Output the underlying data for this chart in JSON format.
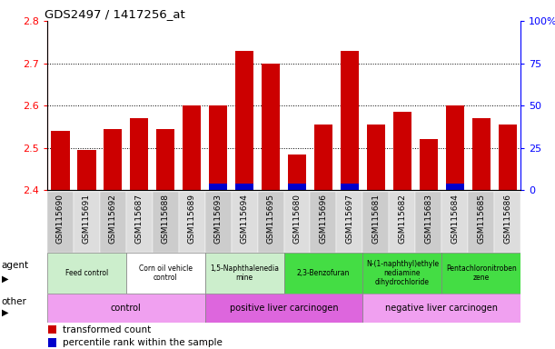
{
  "title": "GDS2497 / 1417256_at",
  "samples": [
    "GSM115690",
    "GSM115691",
    "GSM115692",
    "GSM115687",
    "GSM115688",
    "GSM115689",
    "GSM115693",
    "GSM115694",
    "GSM115695",
    "GSM115680",
    "GSM115696",
    "GSM115697",
    "GSM115681",
    "GSM115682",
    "GSM115683",
    "GSM115684",
    "GSM115685",
    "GSM115686"
  ],
  "transformed_count": [
    2.54,
    2.495,
    2.545,
    2.57,
    2.545,
    2.6,
    2.6,
    2.73,
    2.7,
    2.485,
    2.555,
    2.73,
    2.555,
    2.585,
    2.52,
    2.6,
    2.57,
    2.555
  ],
  "percentile_rank": [
    0,
    0,
    0,
    0,
    0,
    0,
    4,
    4,
    0,
    4,
    0,
    4,
    0,
    0,
    0,
    4,
    0,
    0
  ],
  "ylim_left": [
    2.4,
    2.8
  ],
  "ylim_right": [
    0,
    100
  ],
  "yticks_left": [
    2.4,
    2.5,
    2.6,
    2.7,
    2.8
  ],
  "yticks_right": [
    0,
    25,
    50,
    75,
    100
  ],
  "ytick_labels_right": [
    "0",
    "25",
    "50",
    "75",
    "100%"
  ],
  "dotted_lines": [
    2.5,
    2.6,
    2.7
  ],
  "agent_groups": [
    {
      "label": "Feed control",
      "start": 0,
      "end": 3,
      "color": "#cceecc"
    },
    {
      "label": "Corn oil vehicle\ncontrol",
      "start": 3,
      "end": 6,
      "color": "#ffffff"
    },
    {
      "label": "1,5-Naphthalenedia\nmine",
      "start": 6,
      "end": 9,
      "color": "#cceecc"
    },
    {
      "label": "2,3-Benzofuran",
      "start": 9,
      "end": 12,
      "color": "#44dd44"
    },
    {
      "label": "N-(1-naphthyl)ethyle\nnediamine\ndihydrochloride",
      "start": 12,
      "end": 15,
      "color": "#44dd44"
    },
    {
      "label": "Pentachloronitroben\nzene",
      "start": 15,
      "end": 18,
      "color": "#44dd44"
    }
  ],
  "other_groups": [
    {
      "label": "control",
      "start": 0,
      "end": 6,
      "color": "#f0a0f0"
    },
    {
      "label": "positive liver carcinogen",
      "start": 6,
      "end": 12,
      "color": "#dd66dd"
    },
    {
      "label": "negative liver carcinogen",
      "start": 12,
      "end": 18,
      "color": "#f0a0f0"
    }
  ],
  "bar_color": "#cc0000",
  "percentile_color": "#0000cc",
  "col_colors": [
    "#cccccc",
    "#dddddd"
  ],
  "agent_row_label": "agent",
  "other_row_label": "other"
}
